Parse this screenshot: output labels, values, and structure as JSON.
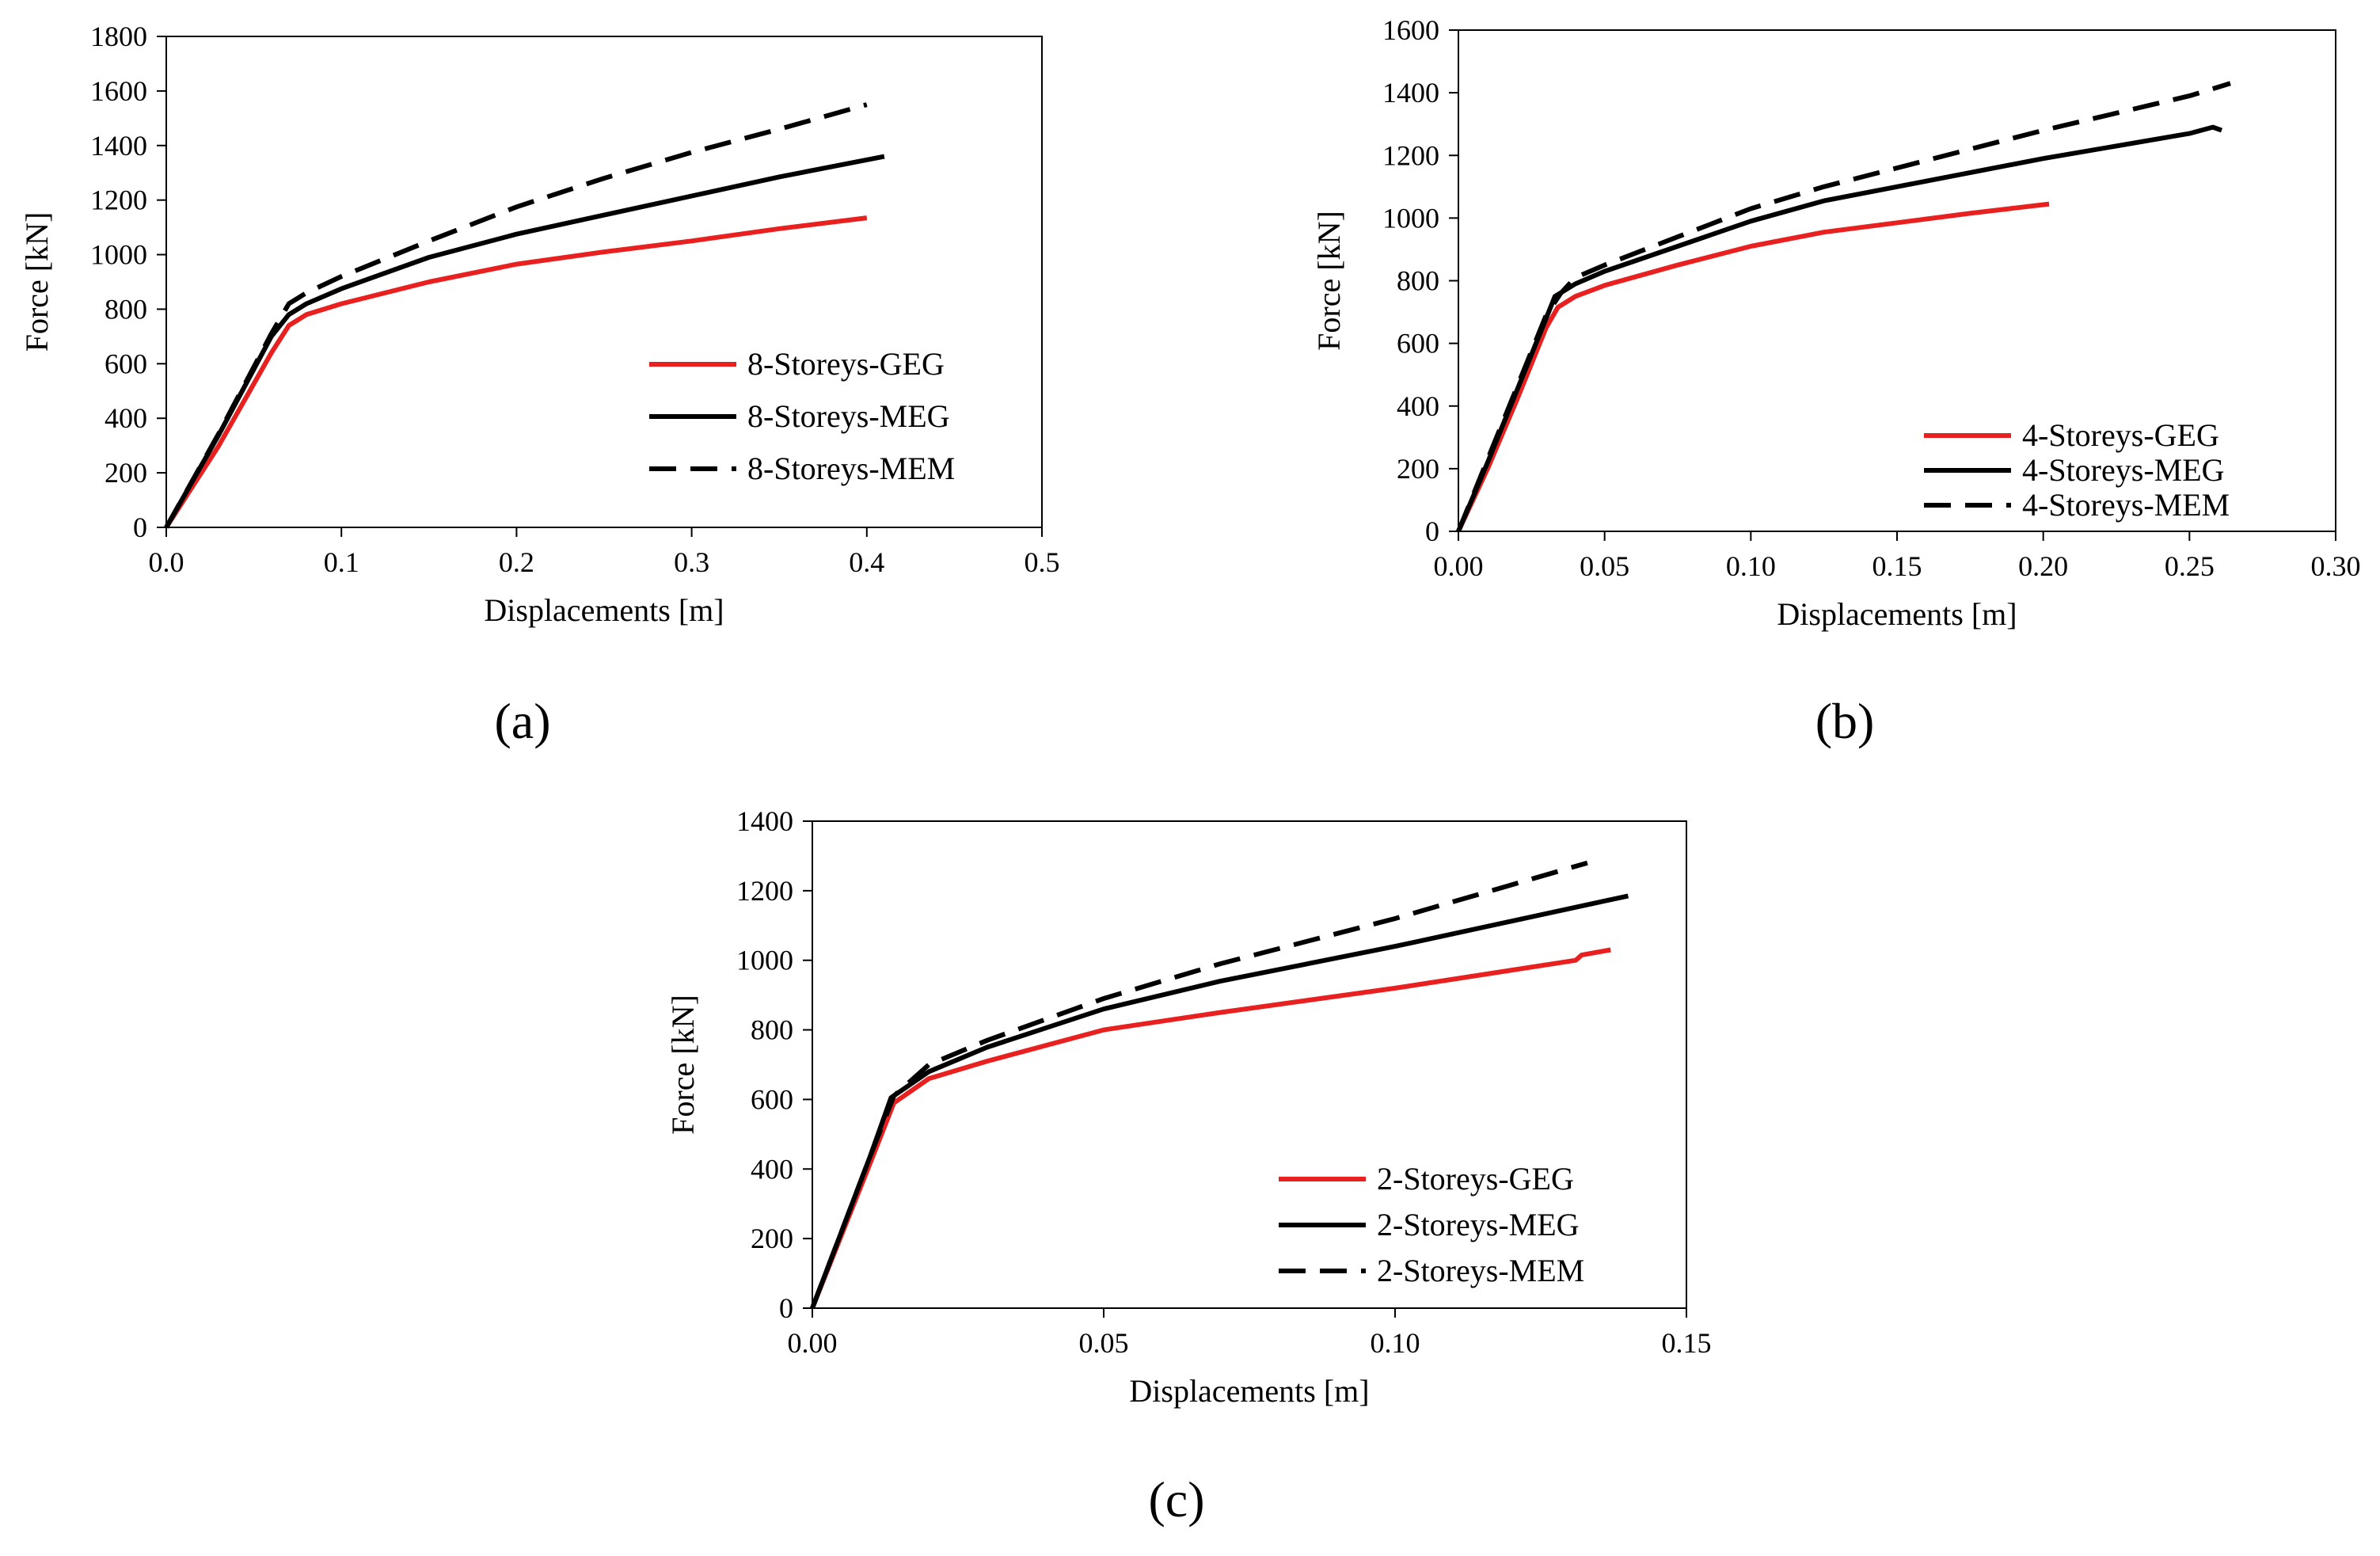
{
  "chart_data": [
    {
      "id": "a",
      "type": "line",
      "panel_label": "(a)",
      "title": "",
      "xlabel": "Displacements [m]",
      "ylabel": "Force [kN]",
      "xlim": [
        0,
        0.5
      ],
      "ylim": [
        0,
        1800
      ],
      "xticks": [
        0,
        0.1,
        0.2,
        0.3,
        0.4,
        0.5
      ],
      "xtick_labels": [
        "0.0",
        "0.1",
        "0.2",
        "0.3",
        "0.4",
        "0.5"
      ],
      "yticks": [
        0,
        200,
        400,
        600,
        800,
        1000,
        1200,
        1400,
        1600,
        1800
      ],
      "ytick_labels": [
        "0",
        "200",
        "400",
        "600",
        "800",
        "1000",
        "1200",
        "1400",
        "1600",
        "1800"
      ],
      "grid": false,
      "legend_position": "lower-right",
      "series": [
        {
          "name": "8-Storeys-GEG",
          "color": "#e8201f",
          "dash": "solid",
          "points": [
            [
              0,
              0
            ],
            [
              0.03,
              300
            ],
            [
              0.06,
              640
            ],
            [
              0.07,
              740
            ],
            [
              0.08,
              780
            ],
            [
              0.1,
              820
            ],
            [
              0.15,
              900
            ],
            [
              0.2,
              965
            ],
            [
              0.25,
              1010
            ],
            [
              0.3,
              1050
            ],
            [
              0.35,
              1095
            ],
            [
              0.4,
              1135
            ]
          ]
        },
        {
          "name": "8-Storeys-MEG",
          "color": "#000000",
          "dash": "solid",
          "points": [
            [
              0,
              0
            ],
            [
              0.03,
              340
            ],
            [
              0.06,
              700
            ],
            [
              0.07,
              780
            ],
            [
              0.08,
              820
            ],
            [
              0.1,
              875
            ],
            [
              0.15,
              990
            ],
            [
              0.2,
              1075
            ],
            [
              0.25,
              1145
            ],
            [
              0.3,
              1215
            ],
            [
              0.35,
              1285
            ],
            [
              0.41,
              1360
            ]
          ]
        },
        {
          "name": "8-Storeys-MEM",
          "color": "#000000",
          "dash": "dashed",
          "points": [
            [
              0,
              0
            ],
            [
              0.03,
              345
            ],
            [
              0.06,
              710
            ],
            [
              0.07,
              820
            ],
            [
              0.08,
              860
            ],
            [
              0.1,
              920
            ],
            [
              0.15,
              1050
            ],
            [
              0.2,
              1175
            ],
            [
              0.25,
              1280
            ],
            [
              0.3,
              1375
            ],
            [
              0.35,
              1460
            ],
            [
              0.4,
              1550
            ]
          ]
        }
      ]
    },
    {
      "id": "b",
      "type": "line",
      "panel_label": "(b)",
      "title": "",
      "xlabel": "Displacements [m]",
      "ylabel": "Force [kN]",
      "xlim": [
        0,
        0.3
      ],
      "ylim": [
        0,
        1600
      ],
      "xticks": [
        0,
        0.05,
        0.1,
        0.15,
        0.2,
        0.25,
        0.3
      ],
      "xtick_labels": [
        "0.00",
        "0.05",
        "0.10",
        "0.15",
        "0.20",
        "0.25",
        "0.30"
      ],
      "yticks": [
        0,
        200,
        400,
        600,
        800,
        1000,
        1200,
        1400,
        1600
      ],
      "ytick_labels": [
        "0",
        "200",
        "400",
        "600",
        "800",
        "1000",
        "1200",
        "1400",
        "1600"
      ],
      "grid": false,
      "legend_position": "lower-right",
      "series": [
        {
          "name": "4-Storeys-GEG",
          "color": "#e8201f",
          "dash": "solid",
          "points": [
            [
              0,
              0
            ],
            [
              0.01,
              200
            ],
            [
              0.02,
              420
            ],
            [
              0.03,
              650
            ],
            [
              0.034,
              715
            ],
            [
              0.04,
              750
            ],
            [
              0.05,
              785
            ],
            [
              0.075,
              850
            ],
            [
              0.1,
              910
            ],
            [
              0.125,
              955
            ],
            [
              0.15,
              985
            ],
            [
              0.175,
              1015
            ],
            [
              0.202,
              1045
            ]
          ]
        },
        {
          "name": "4-Storeys-MEG",
          "color": "#000000",
          "dash": "solid",
          "points": [
            [
              0,
              0
            ],
            [
              0.01,
              220
            ],
            [
              0.02,
              450
            ],
            [
              0.03,
              680
            ],
            [
              0.033,
              750
            ],
            [
              0.04,
              790
            ],
            [
              0.05,
              830
            ],
            [
              0.075,
              910
            ],
            [
              0.1,
              990
            ],
            [
              0.125,
              1055
            ],
            [
              0.15,
              1100
            ],
            [
              0.2,
              1190
            ],
            [
              0.25,
              1270
            ],
            [
              0.258,
              1290
            ],
            [
              0.261,
              1280
            ]
          ]
        },
        {
          "name": "4-Storeys-MEM",
          "color": "#000000",
          "dash": "dashed",
          "points": [
            [
              0,
              0
            ],
            [
              0.01,
              230
            ],
            [
              0.02,
              460
            ],
            [
              0.03,
              690
            ],
            [
              0.035,
              760
            ],
            [
              0.04,
              810
            ],
            [
              0.05,
              850
            ],
            [
              0.075,
              940
            ],
            [
              0.1,
              1030
            ],
            [
              0.125,
              1100
            ],
            [
              0.15,
              1160
            ],
            [
              0.2,
              1280
            ],
            [
              0.25,
              1390
            ],
            [
              0.264,
              1430
            ]
          ]
        }
      ]
    },
    {
      "id": "c",
      "type": "line",
      "panel_label": "(c)",
      "title": "",
      "xlabel": "Displacements [m]",
      "ylabel": "Force [kN]",
      "xlim": [
        0,
        0.15
      ],
      "ylim": [
        0,
        1400
      ],
      "xticks": [
        0,
        0.05,
        0.1,
        0.15
      ],
      "xtick_labels": [
        "0.00",
        "0.05",
        "0.10",
        "0.15"
      ],
      "yticks": [
        0,
        200,
        400,
        600,
        800,
        1000,
        1200,
        1400
      ],
      "ytick_labels": [
        "0",
        "200",
        "400",
        "600",
        "800",
        "1000",
        "1200",
        "1400"
      ],
      "grid": false,
      "legend_position": "lower-right",
      "series": [
        {
          "name": "2-Storeys-GEG",
          "color": "#e8201f",
          "dash": "solid",
          "points": [
            [
              0,
              0
            ],
            [
              0.005,
              210
            ],
            [
              0.01,
              420
            ],
            [
              0.014,
              590
            ],
            [
              0.02,
              660
            ],
            [
              0.03,
              710
            ],
            [
              0.05,
              800
            ],
            [
              0.07,
              850
            ],
            [
              0.1,
              920
            ],
            [
              0.131,
              1000
            ],
            [
              0.132,
              1015
            ],
            [
              0.137,
              1030
            ]
          ]
        },
        {
          "name": "2-Storeys-MEG",
          "color": "#000000",
          "dash": "solid",
          "points": [
            [
              0,
              0
            ],
            [
              0.005,
              220
            ],
            [
              0.01,
              440
            ],
            [
              0.0135,
              605
            ],
            [
              0.02,
              680
            ],
            [
              0.03,
              750
            ],
            [
              0.05,
              860
            ],
            [
              0.07,
              940
            ],
            [
              0.1,
              1040
            ],
            [
              0.14,
              1185
            ]
          ]
        },
        {
          "name": "2-Storeys-MEM",
          "color": "#000000",
          "dash": "dashed",
          "points": [
            [
              0,
              0
            ],
            [
              0.005,
              220
            ],
            [
              0.01,
              440
            ],
            [
              0.014,
              610
            ],
            [
              0.02,
              700
            ],
            [
              0.03,
              770
            ],
            [
              0.05,
              890
            ],
            [
              0.07,
              990
            ],
            [
              0.1,
              1120
            ],
            [
              0.133,
              1280
            ]
          ]
        }
      ]
    }
  ]
}
